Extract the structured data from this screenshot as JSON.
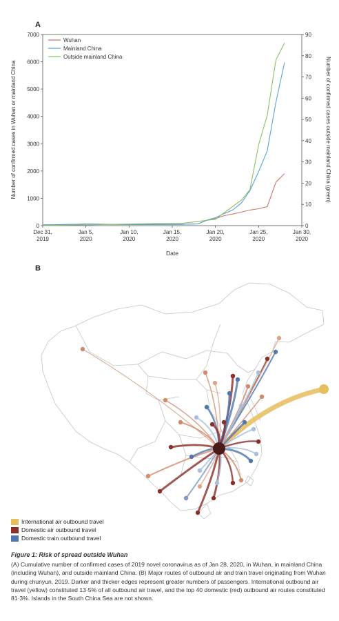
{
  "panel_a": {
    "label": "A"
  },
  "panel_b": {
    "label": "B"
  },
  "chart_data": {
    "type": "line",
    "xlabel": "Date",
    "ylabel_left": "Number of confirmed cases in Wuhan or mainland China",
    "ylabel_right": "Number of confirmed cases outside mainland China (green)",
    "xlim": [
      "2019-12-31",
      "2020-01-30"
    ],
    "ylim_left": [
      0,
      7000
    ],
    "ylim_right": [
      0,
      90
    ],
    "x_ticks": [
      "Dec 31,\n2019",
      "Jan 5,\n2020",
      "Jan 10,\n2020",
      "Jan 15,\n2020",
      "Jan 20,\n2020",
      "Jan 25,\n2020",
      "Jan 30,\n2020"
    ],
    "y_ticks_left": [
      0,
      1000,
      2000,
      3000,
      4000,
      5000,
      6000,
      7000
    ],
    "y_ticks_right": [
      0,
      10,
      20,
      30,
      40,
      50,
      60,
      70,
      80,
      90
    ],
    "legend": "top-left",
    "grid": false,
    "series": [
      {
        "name": "Wuhan",
        "color": "#c9796b",
        "axis": "left",
        "x": [
          "2019-12-31",
          "2020-01-03",
          "2020-01-05",
          "2020-01-10",
          "2020-01-11",
          "2020-01-16",
          "2020-01-18",
          "2020-01-19",
          "2020-01-20",
          "2020-01-21",
          "2020-01-22",
          "2020-01-23",
          "2020-01-24",
          "2020-01-25",
          "2020-01-26",
          "2020-01-27",
          "2020-01-28"
        ],
        "y": [
          27,
          44,
          59,
          41,
          41,
          45,
          62,
          198,
          258,
          363,
          425,
          495,
          572,
          618,
          698,
          1590,
          1905
        ]
      },
      {
        "name": "Mainland China",
        "color": "#55a3d6",
        "axis": "left",
        "x": [
          "2019-12-31",
          "2020-01-03",
          "2020-01-05",
          "2020-01-10",
          "2020-01-11",
          "2020-01-16",
          "2020-01-18",
          "2020-01-19",
          "2020-01-20",
          "2020-01-21",
          "2020-01-22",
          "2020-01-23",
          "2020-01-24",
          "2020-01-25",
          "2020-01-26",
          "2020-01-27",
          "2020-01-28"
        ],
        "y": [
          27,
          44,
          59,
          41,
          41,
          45,
          62,
          201,
          291,
          440,
          571,
          830,
          1287,
          1975,
          2744,
          4515,
          5974
        ]
      },
      {
        "name": "Outside mainland China",
        "color": "#8bc06a",
        "axis": "right",
        "x": [
          "2019-12-31",
          "2020-01-13",
          "2020-01-16",
          "2020-01-18",
          "2020-01-20",
          "2020-01-21",
          "2020-01-22",
          "2020-01-23",
          "2020-01-24",
          "2020-01-25",
          "2020-01-26",
          "2020-01-27",
          "2020-01-28"
        ],
        "y": [
          0,
          1,
          1,
          2,
          3,
          6,
          9,
          12,
          17,
          38,
          52,
          78,
          86
        ]
      }
    ]
  },
  "legend_b": {
    "items": [
      {
        "label": "International air outbound travel",
        "color": "#e6bd5f"
      },
      {
        "label": "Domestic air outbound travel",
        "color": "#8a2e2a"
      },
      {
        "label": "Domestic train outbound travel",
        "color": "#4f77ad"
      }
    ]
  },
  "caption": {
    "figure_number": "Figure 1:",
    "title": "Risk of spread outside Wuhan",
    "text": "(A) Cumulative number of confirmed cases of 2019 novel coronavirus as of Jan 28, 2020, in Wuhan, in mainland China (including Wuhan), and outside mainland China. (B) Major routes of outbound air and train travel originating from Wuhan during chunyun, 2019. Darker and thicker edges represent greater numbers of passengers. International outbound air travel (yellow) constituted 13·5% of all outbound air travel, and the top 40 domestic (red) outbound air routes constituted 81·3%. Islands in the South China Sea are not shown."
  }
}
